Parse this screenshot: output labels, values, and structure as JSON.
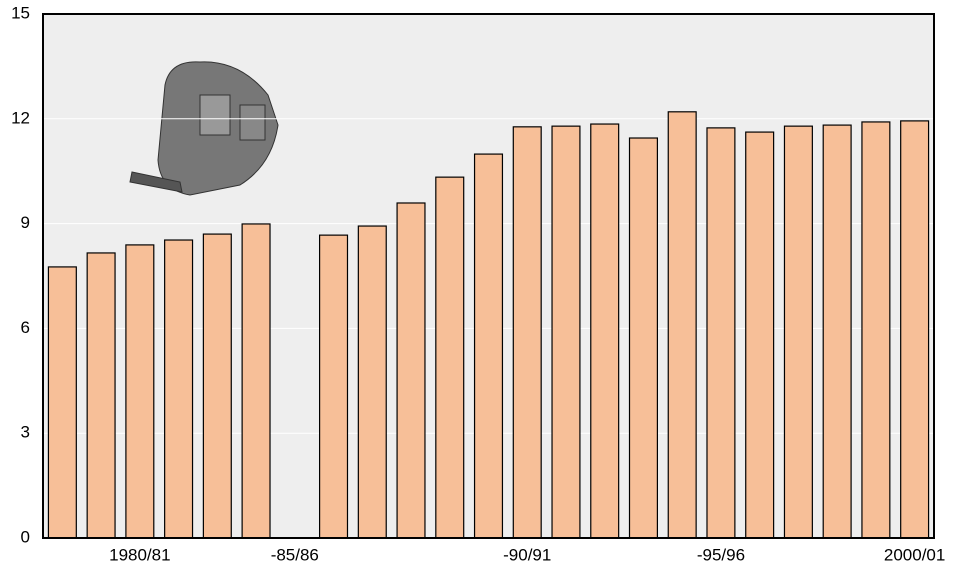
{
  "chart_data": {
    "type": "bar",
    "categories": [
      null,
      null,
      "1980/81",
      null,
      null,
      null,
      "-85/86",
      null,
      null,
      null,
      null,
      null,
      "-90/91",
      null,
      null,
      null,
      null,
      "-95/96",
      null,
      null,
      null,
      null,
      "2000/01"
    ],
    "values": [
      7.76,
      8.16,
      8.39,
      8.53,
      8.7,
      8.99,
      null,
      8.67,
      8.93,
      9.59,
      10.33,
      10.99,
      11.77,
      11.79,
      11.85,
      11.45,
      12.2,
      11.74,
      11.62,
      11.79,
      11.82,
      11.91,
      11.94
    ],
    "color": "#f7bf98",
    "ylim": [
      0,
      15
    ],
    "yticks": [
      0,
      3,
      6,
      9,
      12,
      15
    ],
    "grid": true
  }
}
